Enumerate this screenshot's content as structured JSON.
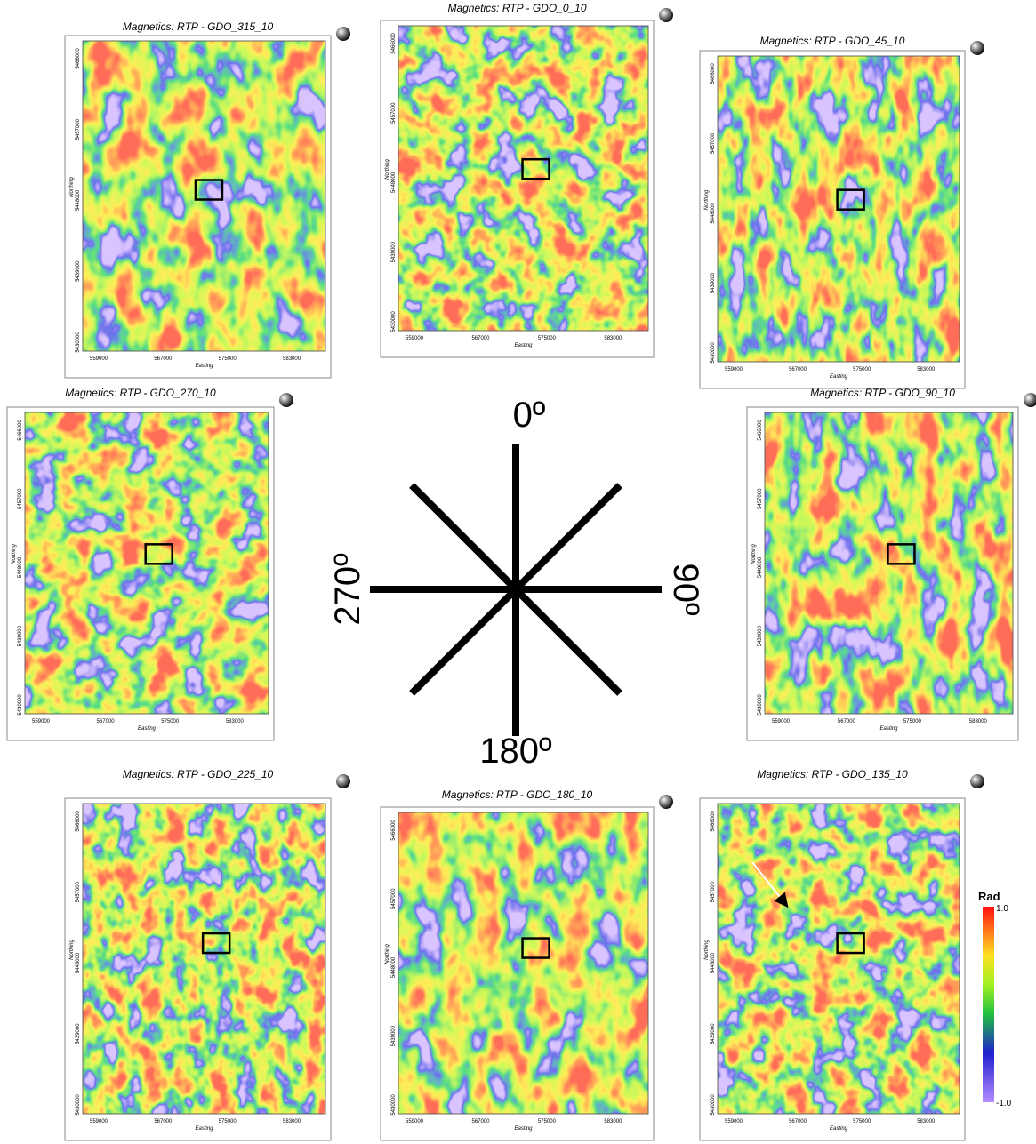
{
  "panels": [
    {
      "title": "Magnetics: RTP -  GDO_315_10"
    },
    {
      "title": "Magnetics: RTP -  GDO_0_10"
    },
    {
      "title": "Magnetics: RTP -  GDO_45_10"
    },
    {
      "title": "Magnetics: RTP -  GDO_270_10"
    },
    {
      "title": "Magnetics: RTP -  GDO_90_10"
    },
    {
      "title": "Magnetics: RTP -  GDO_225_10"
    },
    {
      "title": "Magnetics: RTP -  GDO_180_10"
    },
    {
      "title": "Magnetics: RTP -  GDO_135_10"
    }
  ],
  "axes": {
    "xticks": [
      "559000",
      "567000",
      "575000",
      "583000"
    ],
    "yticks": [
      "5466000",
      "5457000",
      "5448000",
      "5439000",
      "5430000"
    ],
    "xlabel": "Easting",
    "ylabel": "Northing"
  },
  "compass": {
    "north": "0º",
    "east": "90º",
    "south": "180º",
    "west": "270º"
  },
  "colorbar": {
    "title": "Rad",
    "max": "1.0",
    "min": "-1.0"
  }
}
